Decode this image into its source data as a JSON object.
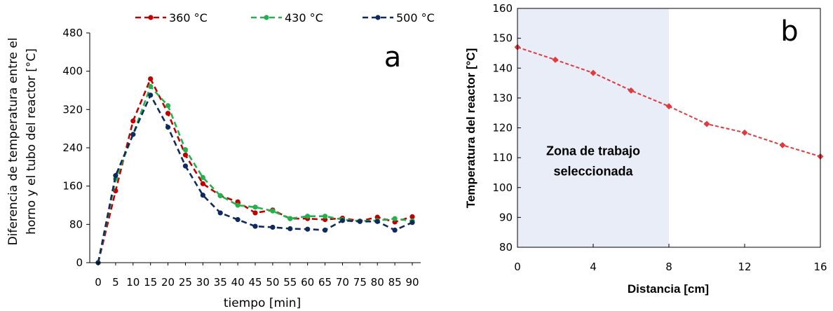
{
  "chart_data": [
    {
      "type": "line",
      "panel_label": "a",
      "title": "",
      "xlabel": "tiempo [min]",
      "ylabel_lines": [
        "Diferencia de temperatura entre el",
        "horno y el tubo del reactor  [°C]"
      ],
      "xlim": [
        0,
        90
      ],
      "ylim": [
        0,
        480
      ],
      "xticks": [
        0,
        5,
        10,
        15,
        20,
        25,
        30,
        35,
        40,
        45,
        50,
        55,
        60,
        65,
        70,
        75,
        80,
        85,
        90
      ],
      "yticks": [
        0,
        80,
        160,
        240,
        320,
        400,
        480
      ],
      "grid": false,
      "legend_position": "top",
      "x": [
        0,
        5,
        10,
        15,
        20,
        25,
        30,
        35,
        40,
        45,
        50,
        55,
        60,
        65,
        70,
        75,
        80,
        85,
        90
      ],
      "series": [
        {
          "name": "360 °C",
          "color": "#c00000",
          "values": [
            0,
            150,
            296,
            384,
            312,
            225,
            165,
            140,
            127,
            104,
            110,
            92,
            92,
            90,
            93,
            87,
            95,
            85,
            96
          ]
        },
        {
          "name": "430 °C",
          "color": "#22b14c",
          "values": [
            0,
            175,
            268,
            368,
            328,
            236,
            178,
            140,
            120,
            116,
            108,
            92,
            97,
            97,
            90,
            87,
            88,
            92,
            87
          ]
        },
        {
          "name": "500 °C",
          "color": "#0f2a5c",
          "values": [
            0,
            182,
            268,
            350,
            283,
            202,
            141,
            104,
            90,
            76,
            74,
            71,
            70,
            68,
            88,
            86,
            86,
            68,
            84
          ]
        }
      ]
    },
    {
      "type": "line",
      "panel_label": "b",
      "title": "",
      "xlabel": "Distancia [cm]",
      "ylabel": "Temperatura del reactor [°C]",
      "xlim": [
        0,
        16
      ],
      "ylim": [
        80,
        160
      ],
      "xticks": [
        0,
        4,
        8,
        12,
        16
      ],
      "yticks": [
        80,
        90,
        100,
        110,
        120,
        130,
        140,
        150,
        160
      ],
      "grid": false,
      "shaded_region": {
        "x_range": [
          0,
          8
        ],
        "color": "#e9edf7",
        "label_lines": [
          "Zona de trabajo",
          "seleccionada"
        ]
      },
      "series": [
        {
          "name": "",
          "color": "#e0393e",
          "x": [
            0,
            2,
            4,
            6,
            8,
            10,
            12,
            14,
            16
          ],
          "values": [
            147,
            142.8,
            138.4,
            132.5,
            127.2,
            121.3,
            118.4,
            114.2,
            110.4
          ]
        }
      ]
    }
  ]
}
